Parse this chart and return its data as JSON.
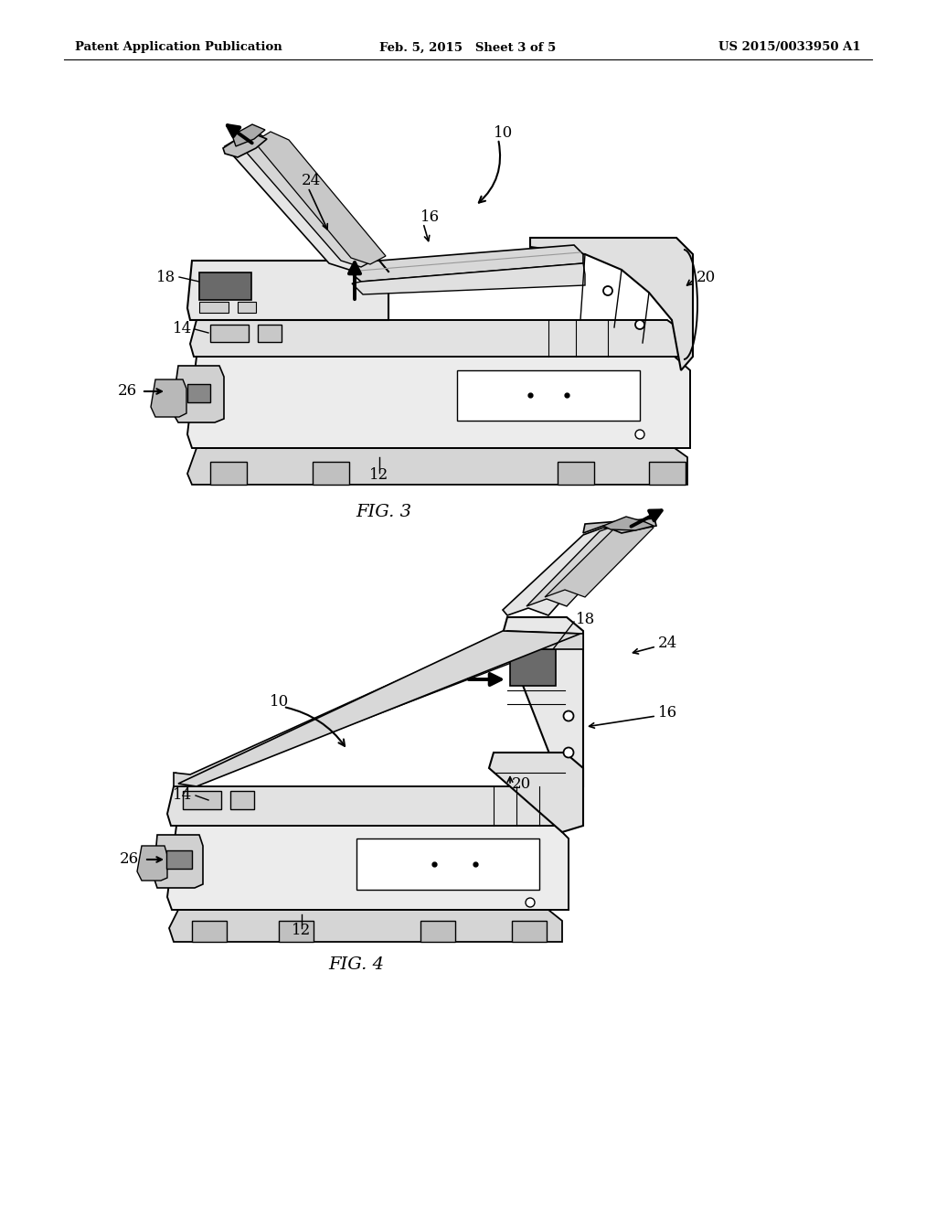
{
  "bg": "#ffffff",
  "header_left": "Patent Application Publication",
  "header_center": "Feb. 5, 2015   Sheet 3 of 5",
  "header_right": "US 2015/0033950 A1",
  "fig3_caption": "FIG. 3",
  "fig4_caption": "FIG. 4",
  "lc": "#000000",
  "lw_main": 1.4,
  "lw_thick": 2.0,
  "gray_light": "#e8e8e8",
  "gray_med": "#c8c8c8",
  "gray_dark": "#888888",
  "white": "#ffffff"
}
